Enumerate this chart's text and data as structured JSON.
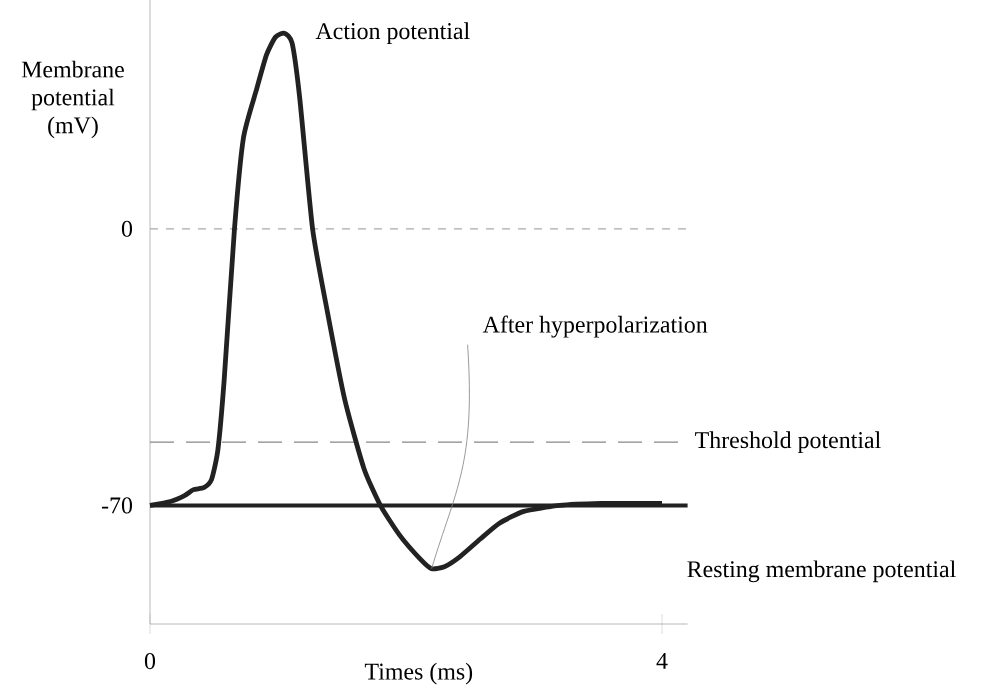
{
  "chart_data": {
    "type": "line",
    "xlabel": "Times (ms)",
    "ylabel": "Membrane potential (mV)",
    "xlim": [
      0,
      4.2
    ],
    "ylim": [
      -100,
      58
    ],
    "xticks": [
      0,
      4
    ],
    "yticks": [
      -70,
      0
    ],
    "grid": false,
    "marker": "none",
    "line_style": "solid",
    "series": [
      {
        "color": "#222222",
        "x": [
          0,
          0.16,
          0.27,
          0.34,
          0.42,
          0.48,
          0.53,
          0.58,
          0.66,
          0.73,
          0.83,
          0.91,
          0.98,
          1.05,
          1.11,
          1.17,
          1.27,
          1.38,
          1.52,
          1.67,
          1.8,
          1.95,
          2.11,
          2.2,
          2.3,
          2.42,
          2.58,
          2.73,
          2.92,
          3.2,
          3.52,
          3.83,
          4.0
        ],
        "values": [
          -70,
          -69,
          -67.5,
          -66,
          -65.5,
          -63.5,
          -56,
          -38,
          0,
          23,
          35,
          44,
          48.5,
          49.5,
          47,
          33,
          0,
          -20,
          -43,
          -60.5,
          -70,
          -77.5,
          -83.5,
          -86,
          -85.5,
          -83,
          -78.5,
          -74.5,
          -71.5,
          -70,
          -69.5,
          -69.5,
          -69.5
        ]
      }
    ],
    "ref_lines": [
      {
        "axis": "y",
        "value": 0,
        "color": "#aaaaaa",
        "line_style": "dotted"
      },
      {
        "axis": "y",
        "value": -54,
        "label": "Threshold potential",
        "color": "#888888",
        "line_style": "dashed"
      },
      {
        "axis": "y",
        "value": -70,
        "label": "Resting membrane potential",
        "color": "#222222",
        "line_style": "solid"
      }
    ],
    "annotations": [
      {
        "text": "Action potential",
        "x": 1.05,
        "y": 49.5
      },
      {
        "text": "After hyperpolarization",
        "x": 2.2,
        "y": -86
      }
    ]
  }
}
